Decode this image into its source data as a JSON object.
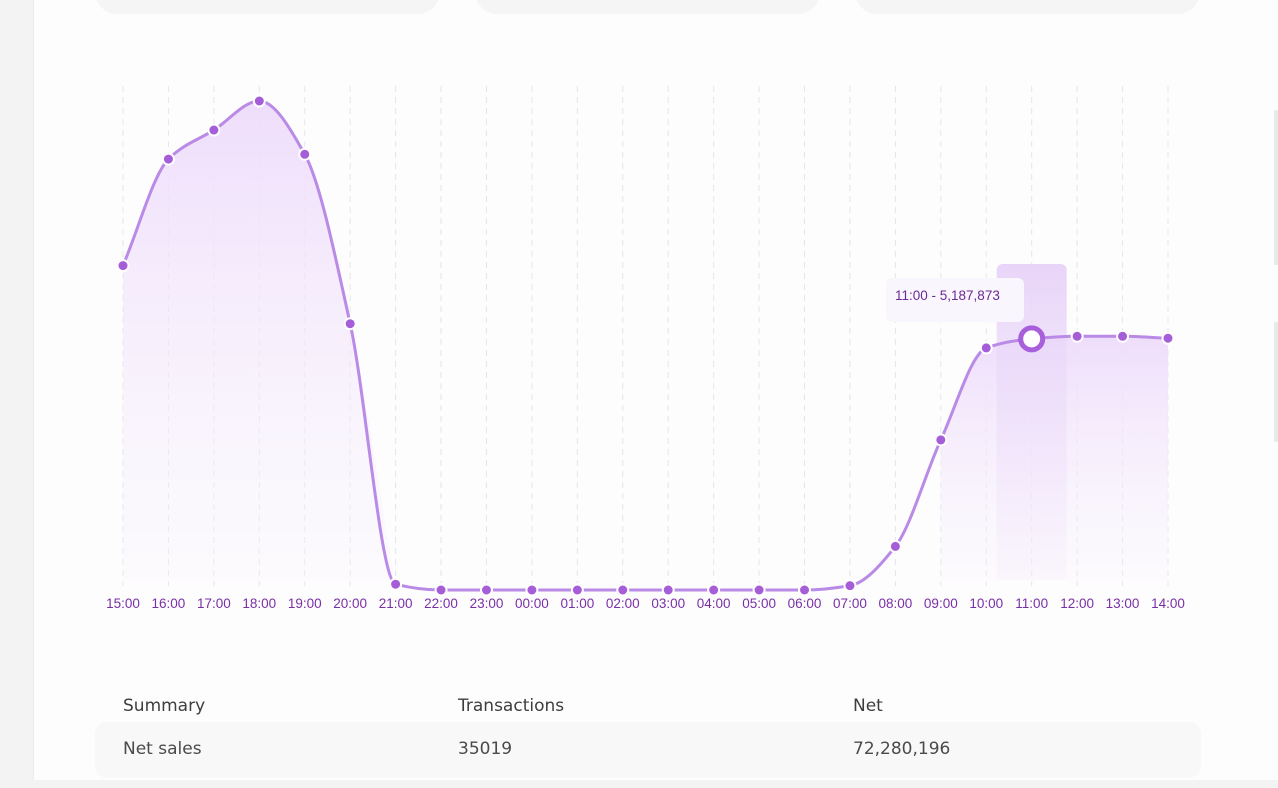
{
  "chart_data": {
    "type": "line",
    "categories": [
      "15:00",
      "16:00",
      "17:00",
      "18:00",
      "19:00",
      "20:00",
      "21:00",
      "22:00",
      "23:00",
      "00:00",
      "01:00",
      "02:00",
      "03:00",
      "04:00",
      "05:00",
      "06:00",
      "07:00",
      "08:00",
      "09:00",
      "10:00",
      "11:00",
      "12:00",
      "13:00",
      "14:00"
    ],
    "series": [
      {
        "values": [
          6700000,
          8900000,
          9500000,
          10100000,
          9000000,
          5500000,
          120000,
          0,
          0,
          0,
          0,
          0,
          0,
          0,
          0,
          0,
          90000,
          900000,
          3100000,
          5000000,
          5187873,
          5240000,
          5240000,
          5200000
        ]
      }
    ],
    "ylim": [
      0,
      10100000
    ],
    "grid": true,
    "legend": "none",
    "colors": {
      "line": "#b98ae6",
      "point": "#a65ed8",
      "fill": "#efe1fa",
      "label": "#7a2fa6"
    },
    "tooltip": {
      "text": "11:00 - 5,187,873",
      "category_index": 20
    }
  },
  "summary": {
    "headers": [
      "Summary",
      "Transactions",
      "Net"
    ],
    "row": [
      "Net sales",
      "35019",
      "72,280,196"
    ]
  }
}
